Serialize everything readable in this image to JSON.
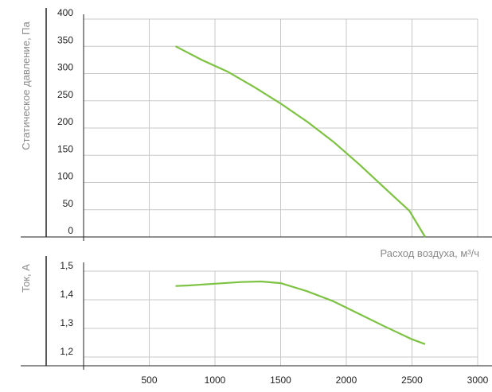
{
  "colors": {
    "curve": "#7dc242",
    "axis": "#222222",
    "grid": "#c9c9c9",
    "tick_text": "#222222",
    "label_text": "#8a8a8a"
  },
  "chart_data": [
    {
      "type": "line",
      "title": "",
      "xlabel": "",
      "ylabel": "Статическое давление, Па",
      "xlim": [
        0,
        3000
      ],
      "ylim": [
        0,
        400
      ],
      "yticks": [
        0,
        50,
        100,
        150,
        200,
        250,
        300,
        350,
        400
      ],
      "ytick_labels": [
        "0",
        "50",
        "100",
        "150",
        "200",
        "250",
        "300",
        "350",
        "400"
      ],
      "grid": true,
      "series": [
        {
          "x": [
            700,
            900,
            1100,
            1300,
            1500,
            1700,
            1900,
            2100,
            2300,
            2480,
            2600
          ],
          "y": [
            350,
            325,
            303,
            275,
            245,
            212,
            175,
            133,
            88,
            48,
            0
          ]
        }
      ]
    },
    {
      "type": "line",
      "title": "",
      "xlabel": "Расход воздуха, м³/ч",
      "ylabel": "Ток, А",
      "xlim": [
        0,
        3000
      ],
      "ylim": [
        1.18,
        1.53
      ],
      "xticks": [
        500,
        1000,
        1500,
        2000,
        2500,
        3000
      ],
      "xtick_labels": [
        "500",
        "1000",
        "1500",
        "2000",
        "2500",
        "3000"
      ],
      "yticks": [
        1.2,
        1.3,
        1.4,
        1.5
      ],
      "ytick_labels": [
        "1,2",
        "1,3",
        "1,4",
        "1,5"
      ],
      "grid": true,
      "series": [
        {
          "x": [
            700,
            800,
            1000,
            1200,
            1350,
            1500,
            1700,
            1900,
            2100,
            2300,
            2500,
            2600
          ],
          "y": [
            1.448,
            1.45,
            1.456,
            1.462,
            1.464,
            1.458,
            1.43,
            1.395,
            1.35,
            1.305,
            1.262,
            1.245
          ]
        }
      ]
    }
  ]
}
